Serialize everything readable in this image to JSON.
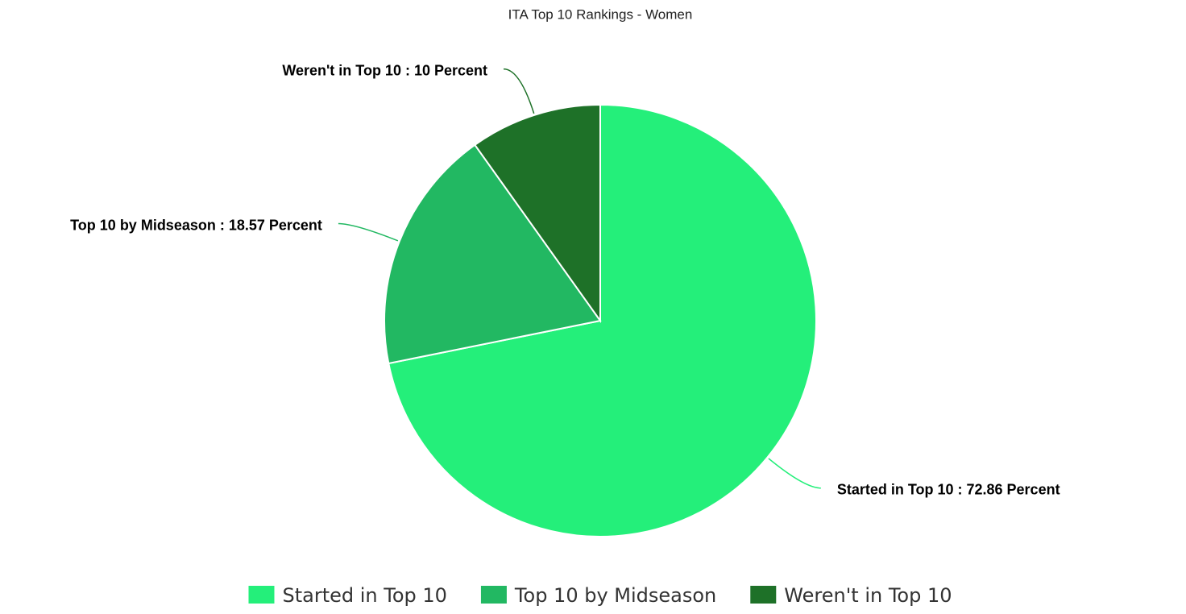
{
  "chart_data": {
    "type": "pie",
    "title": "ITA Top 10 Rankings - Women",
    "categories": [
      "Started in Top 10",
      "Top 10 by Midseason",
      "Weren't in Top 10"
    ],
    "values": [
      72.86,
      18.57,
      10
    ],
    "value_labels": [
      "Started in Top 10 : 72.86 Percent",
      "Top 10 by Midseason : 18.57 Percent",
      "Weren't in Top 10 : 10 Percent"
    ],
    "colors": [
      "#24ef7a",
      "#22b862",
      "#1e7128"
    ],
    "legend": "bottom"
  }
}
